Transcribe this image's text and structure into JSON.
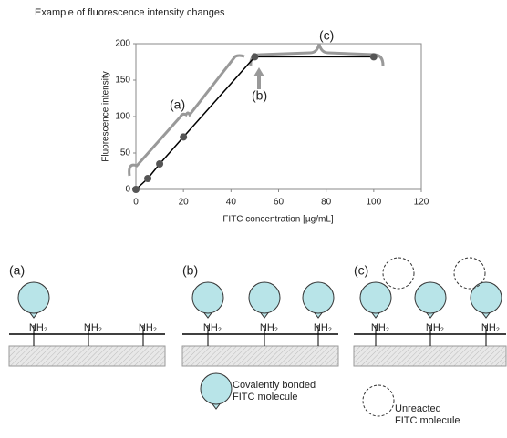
{
  "chart_data": {
    "type": "line",
    "title": "Example of fluorescence intensity changes",
    "x_label": "FITC concentration [µg/mL]",
    "y_label": "Fluorescence intensity",
    "x": [
      0,
      5,
      10,
      20,
      50,
      100
    ],
    "series": [
      {
        "name": "Fluorescence intensity",
        "color": "#000000",
        "marker_color": "#555555",
        "values": [
          0,
          15,
          35,
          72,
          182,
          182
        ]
      }
    ],
    "xlim": [
      0,
      120
    ],
    "xticks": [
      0,
      20,
      40,
      60,
      80,
      100,
      120
    ],
    "ylim": [
      0,
      200
    ],
    "yticks": [
      0,
      50,
      100,
      150,
      200
    ],
    "annotations": [
      "(a)",
      "(b)",
      "(c)"
    ]
  },
  "diagram": {
    "panels": [
      {
        "label": "(a)",
        "groups": [
          "NH₂",
          "NH₂",
          "NH₂"
        ],
        "bonded": [
          true,
          false,
          false
        ],
        "unreacted": 0
      },
      {
        "label": "(b)",
        "groups": [
          "NH₂",
          "NH₂",
          "NH₂"
        ],
        "bonded": [
          true,
          true,
          true
        ],
        "unreacted": 0
      },
      {
        "label": "(c)",
        "groups": [
          "NH₂",
          "NH₂",
          "NH₂"
        ],
        "bonded": [
          true,
          true,
          true
        ],
        "unreacted": 2
      }
    ],
    "legend": {
      "bonded": [
        "Covalently bonded",
        "FITC molecule"
      ],
      "unreacted": [
        "Unreacted",
        "FITC molecule"
      ]
    }
  }
}
